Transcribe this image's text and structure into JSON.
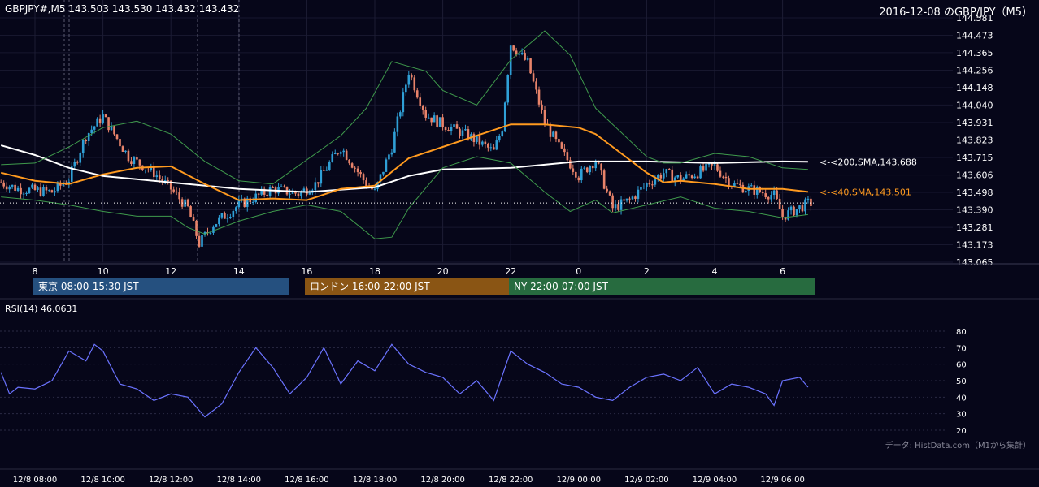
{
  "header": {
    "symbol_line": "GBPJPY#,M5 143.503 143.530 143.432 143.432",
    "title_right": "2016-12-08 のGBP/JPY（M5）"
  },
  "chart_data": [
    {
      "type": "candlestick",
      "title": "GBPJPY#,M5 143.503 143.530 143.432 143.432",
      "subtitle": "2016-12-08 のGBP/JPY（M5）",
      "ylim": [
        143.065,
        144.581
      ],
      "y_ticks": [
        "144.581",
        "144.473",
        "144.365",
        "144.256",
        "144.148",
        "144.040",
        "143.931",
        "143.823",
        "143.715",
        "143.606",
        "143.498",
        "143.390",
        "143.281",
        "143.173",
        "143.065"
      ],
      "x_ticks": [
        "8",
        "10",
        "12",
        "14",
        "16",
        "18",
        "20",
        "22",
        "0",
        "2",
        "4",
        "6"
      ],
      "grid": true,
      "ohlc_anchors": {
        "x": [
          "12/8 07:00",
          "12/8 07:30",
          "12/8 08:30",
          "12/8 09:00",
          "12/8 09:30",
          "12/8 10:00",
          "12/8 10:45",
          "12/8 11:30",
          "12/8 12:00",
          "12/8 12:30",
          "12/8 12:50",
          "12/8 13:15",
          "12/8 14:00",
          "12/8 15:00",
          "12/8 15:45",
          "12/8 16:15",
          "12/8 17:00",
          "12/8 17:45",
          "12/8 18:00",
          "12/8 18:30",
          "12/8 19:00",
          "12/8 19:30",
          "12/8 20:00",
          "12/8 20:45",
          "12/8 21:30",
          "12/8 21:45",
          "12/8 22:00",
          "12/8 22:30",
          "12/8 23:00",
          "12/8 23:30",
          "12/9 00:00",
          "12/9 00:30",
          "12/9 01:00",
          "12/9 01:30",
          "12/9 02:00",
          "12/9 02:30",
          "12/9 03:00",
          "12/9 03:45",
          "12/9 04:00",
          "12/9 04:30",
          "12/9 05:00",
          "12/9 05:45",
          "12/9 06:00",
          "12/9 06:45"
        ],
        "close": [
          143.56,
          143.52,
          143.5,
          143.58,
          143.85,
          143.97,
          143.72,
          143.62,
          143.52,
          143.4,
          143.18,
          143.3,
          143.42,
          143.52,
          143.49,
          143.55,
          143.78,
          143.55,
          143.5,
          143.78,
          144.25,
          143.98,
          143.92,
          143.85,
          143.75,
          143.9,
          144.42,
          144.3,
          143.93,
          143.75,
          143.6,
          143.7,
          143.4,
          143.45,
          143.55,
          143.62,
          143.58,
          143.64,
          143.66,
          143.55,
          143.52,
          143.48,
          143.35,
          143.43
        ]
      },
      "series": [
        {
          "name": "<-<200,SMA,143.688",
          "color": "#ffffff",
          "x": [
            "12/8 07:00",
            "12/8 08:00",
            "12/8 09:00",
            "12/8 10:00",
            "12/8 12:00",
            "12/8 14:00",
            "12/8 16:00",
            "12/8 18:00",
            "12/8 19:00",
            "12/8 20:00",
            "12/8 22:00",
            "12/8 23:00",
            "12/9 00:00",
            "12/9 02:00",
            "12/9 04:00",
            "12/9 06:00",
            "12/9 06:45"
          ],
          "values": [
            143.79,
            143.73,
            143.65,
            143.6,
            143.56,
            143.52,
            143.5,
            143.53,
            143.6,
            143.64,
            143.65,
            143.67,
            143.69,
            143.69,
            143.68,
            143.69,
            143.688
          ]
        },
        {
          "name": "<-<40,SMA,143.501",
          "color": "#ff9a1f",
          "x": [
            "12/8 07:00",
            "12/8 08:00",
            "12/8 09:00",
            "12/8 10:00",
            "12/8 11:00",
            "12/8 12:00",
            "12/8 13:00",
            "12/8 14:00",
            "12/8 15:00",
            "12/8 16:00",
            "12/8 17:00",
            "12/8 18:00",
            "12/8 19:00",
            "12/8 20:00",
            "12/8 21:00",
            "12/8 22:00",
            "12/8 23:00",
            "12/9 00:00",
            "12/9 00:30",
            "12/9 01:00",
            "12/9 02:00",
            "12/9 02:30",
            "12/9 03:00",
            "12/9 04:00",
            "12/9 05:00",
            "12/9 06:00",
            "12/9 06:45"
          ],
          "values": [
            143.62,
            143.57,
            143.55,
            143.61,
            143.65,
            143.66,
            143.55,
            143.45,
            143.46,
            143.45,
            143.52,
            143.54,
            143.71,
            143.78,
            143.85,
            143.92,
            143.92,
            143.9,
            143.86,
            143.78,
            143.62,
            143.56,
            143.57,
            143.55,
            143.52,
            143.52,
            143.501
          ]
        },
        {
          "name": "bollinger-upper",
          "color": "#3f9a4c",
          "x": [
            "12/8 07:00",
            "12/8 08:00",
            "12/8 09:00",
            "12/8 10:00",
            "12/8 11:00",
            "12/8 12:00",
            "12/8 13:00",
            "12/8 14:00",
            "12/8 15:00",
            "12/8 16:00",
            "12/8 17:00",
            "12/8 17:45",
            "12/8 18:30",
            "12/8 19:30",
            "12/8 20:00",
            "12/8 21:00",
            "12/8 22:00",
            "12/8 23:00",
            "12/8 23:45",
            "12/9 00:30",
            "12/9 01:00",
            "12/9 02:00",
            "12/9 02:30",
            "12/9 03:00",
            "12/9 04:00",
            "12/9 05:00",
            "12/9 06:00",
            "12/9 06:45"
          ],
          "values": [
            143.67,
            143.68,
            143.78,
            143.9,
            143.94,
            143.86,
            143.69,
            143.57,
            143.55,
            143.7,
            143.85,
            144.02,
            144.31,
            144.25,
            144.13,
            144.04,
            144.32,
            144.5,
            144.35,
            144.02,
            143.92,
            143.72,
            143.68,
            143.68,
            143.74,
            143.72,
            143.65,
            143.64
          ]
        },
        {
          "name": "bollinger-lower",
          "color": "#3f9a4c",
          "x": [
            "12/8 07:00",
            "12/8 08:00",
            "12/8 09:00",
            "12/8 10:00",
            "12/8 11:00",
            "12/8 12:00",
            "12/8 12:30",
            "12/8 13:00",
            "12/8 14:00",
            "12/8 15:00",
            "12/8 16:00",
            "12/8 17:00",
            "12/8 18:00",
            "12/8 18:30",
            "12/8 19:00",
            "12/8 20:00",
            "12/8 21:00",
            "12/8 22:00",
            "12/8 23:00",
            "12/8 23:45",
            "12/9 00:30",
            "12/9 01:00",
            "12/9 02:00",
            "12/9 03:00",
            "12/9 04:00",
            "12/9 05:00",
            "12/9 06:00",
            "12/9 06:45"
          ],
          "values": [
            143.47,
            143.45,
            143.42,
            143.38,
            143.35,
            143.35,
            143.28,
            143.24,
            143.32,
            143.38,
            143.42,
            143.38,
            143.21,
            143.22,
            143.4,
            143.65,
            143.72,
            143.68,
            143.5,
            143.38,
            143.45,
            143.37,
            143.42,
            143.47,
            143.4,
            143.38,
            143.34,
            143.36
          ]
        }
      ],
      "last_price": 143.432,
      "price_line_color": "#ffffff",
      "up_color": "#2f9fd6",
      "down_color": "#e8836a"
    },
    {
      "type": "line",
      "title": "RSI(14) 46.0631",
      "ylim": [
        20,
        80
      ],
      "y_ticks": [
        "80",
        "70",
        "60",
        "50",
        "40",
        "30",
        "20"
      ],
      "x_ticks": [
        "12/8 08:00",
        "12/8 10:00",
        "12/8 12:00",
        "12/8 14:00",
        "12/8 16:00",
        "12/8 18:00",
        "12/8 20:00",
        "12/8 22:00",
        "12/9 00:00",
        "12/9 02:00",
        "12/9 04:00",
        "12/9 06:00"
      ],
      "series": [
        {
          "name": "RSI(14)",
          "color": "#6b73ff",
          "x": [
            "12/8 07:00",
            "12/8 07:15",
            "12/8 07:30",
            "12/8 08:00",
            "12/8 08:30",
            "12/8 09:00",
            "12/8 09:30",
            "12/8 09:45",
            "12/8 10:00",
            "12/8 10:30",
            "12/8 11:00",
            "12/8 11:30",
            "12/8 12:00",
            "12/8 12:30",
            "12/8 13:00",
            "12/8 13:30",
            "12/8 14:00",
            "12/8 14:30",
            "12/8 15:00",
            "12/8 15:30",
            "12/8 16:00",
            "12/8 16:30",
            "12/8 17:00",
            "12/8 17:30",
            "12/8 18:00",
            "12/8 18:30",
            "12/8 19:00",
            "12/8 19:30",
            "12/8 20:00",
            "12/8 20:30",
            "12/8 21:00",
            "12/8 21:30",
            "12/8 22:00",
            "12/8 22:30",
            "12/8 23:00",
            "12/8 23:30",
            "12/9 00:00",
            "12/9 00:30",
            "12/9 01:00",
            "12/9 01:30",
            "12/9 02:00",
            "12/9 02:30",
            "12/9 03:00",
            "12/9 03:30",
            "12/9 04:00",
            "12/9 04:30",
            "12/9 05:00",
            "12/9 05:30",
            "12/9 05:45",
            "12/9 06:00",
            "12/9 06:30",
            "12/9 06:45"
          ],
          "values": [
            55,
            42,
            46,
            45,
            50,
            68,
            62,
            72,
            68,
            48,
            45,
            38,
            42,
            40,
            28,
            36,
            55,
            70,
            58,
            42,
            52,
            70,
            48,
            62,
            56,
            72,
            60,
            55,
            52,
            42,
            50,
            38,
            68,
            60,
            55,
            48,
            46,
            40,
            38,
            46,
            52,
            54,
            50,
            58,
            42,
            48,
            46,
            42,
            35,
            50,
            52,
            46.0631
          ]
        }
      ]
    }
  ],
  "sessions": [
    {
      "label": "東京 08:00-15:30 JST",
      "color": "#25507f"
    },
    {
      "label": "ロンドン 16:00-22:00 JST",
      "color": "#8a5514"
    },
    {
      "label": "NY 22:00-07:00 JST",
      "color": "#276b3f"
    }
  ],
  "footer": {
    "source_note": "データ: HistData.com（M1から集計）"
  }
}
